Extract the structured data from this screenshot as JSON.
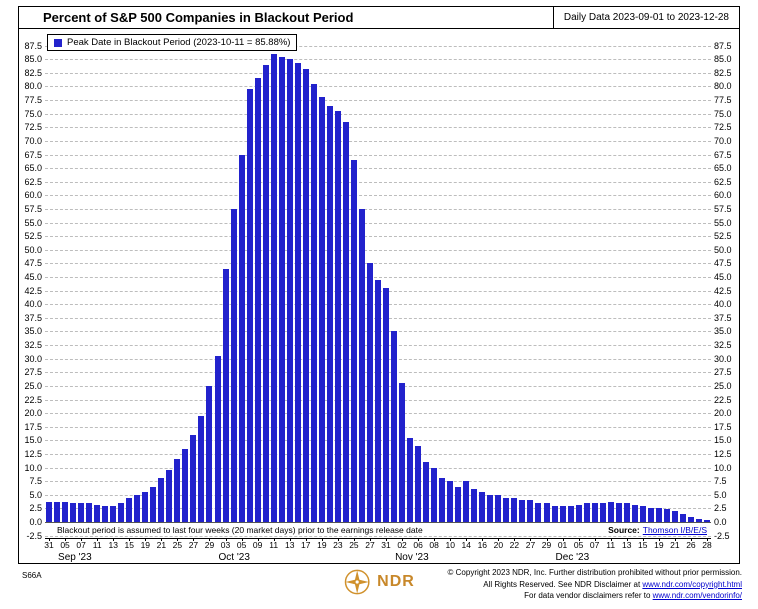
{
  "header": {
    "title": "Percent of S&P 500 Companies in Blackout Period",
    "date_range": "Daily Data 2023-09-01 to 2023-12-28"
  },
  "legend": {
    "label": "Peak Date in Blackout Period (2023-10-11 = 85.88%)",
    "swatch_color": "#2222cc"
  },
  "chart_data": {
    "type": "bar",
    "title": "Percent of S&P 500 Companies in Blackout Period",
    "ylim": [
      -2.5,
      87.5
    ],
    "ytick_step": 2.5,
    "grid": "dashed-horizontal",
    "bar_color": "#2222cc",
    "legend_position": "top-left",
    "peak": {
      "date": "2023-10-11",
      "value": 85.88
    },
    "dates": [
      "2023-08-31",
      "2023-09-01",
      "2023-09-05",
      "2023-09-06",
      "2023-09-07",
      "2023-09-08",
      "2023-09-11",
      "2023-09-12",
      "2023-09-13",
      "2023-09-14",
      "2023-09-15",
      "2023-09-18",
      "2023-09-19",
      "2023-09-20",
      "2023-09-21",
      "2023-09-22",
      "2023-09-25",
      "2023-09-26",
      "2023-09-27",
      "2023-09-28",
      "2023-09-29",
      "2023-10-02",
      "2023-10-03",
      "2023-10-04",
      "2023-10-05",
      "2023-10-06",
      "2023-10-09",
      "2023-10-10",
      "2023-10-11",
      "2023-10-12",
      "2023-10-13",
      "2023-10-16",
      "2023-10-17",
      "2023-10-18",
      "2023-10-19",
      "2023-10-20",
      "2023-10-23",
      "2023-10-24",
      "2023-10-25",
      "2023-10-26",
      "2023-10-27",
      "2023-10-30",
      "2023-10-31",
      "2023-11-01",
      "2023-11-02",
      "2023-11-03",
      "2023-11-06",
      "2023-11-07",
      "2023-11-08",
      "2023-11-09",
      "2023-11-10",
      "2023-11-13",
      "2023-11-14",
      "2023-11-15",
      "2023-11-16",
      "2023-11-17",
      "2023-11-20",
      "2023-11-21",
      "2023-11-22",
      "2023-11-24",
      "2023-11-27",
      "2023-11-28",
      "2023-11-29",
      "2023-11-30",
      "2023-12-01",
      "2023-12-04",
      "2023-12-05",
      "2023-12-06",
      "2023-12-07",
      "2023-12-08",
      "2023-12-11",
      "2023-12-12",
      "2023-12-13",
      "2023-12-14",
      "2023-12-15",
      "2023-12-18",
      "2023-12-19",
      "2023-12-20",
      "2023-12-21",
      "2023-12-22",
      "2023-12-26",
      "2023-12-27",
      "2023-12-28"
    ],
    "values": [
      3.6,
      3.6,
      3.6,
      3.5,
      3.5,
      3.5,
      3.1,
      3.0,
      3.0,
      3.4,
      4.5,
      5.0,
      5.5,
      6.5,
      8.0,
      9.5,
      11.5,
      13.5,
      16.0,
      19.5,
      25.0,
      30.5,
      46.5,
      57.5,
      67.5,
      79.5,
      81.5,
      84.0,
      85.88,
      85.4,
      85.0,
      84.4,
      83.2,
      80.5,
      78.0,
      76.5,
      75.5,
      73.5,
      66.5,
      57.5,
      47.5,
      44.5,
      43.0,
      35.0,
      25.5,
      15.5,
      14.0,
      11.0,
      10.0,
      8.0,
      7.5,
      6.5,
      7.5,
      6.0,
      5.5,
      5.0,
      5.0,
      4.5,
      4.5,
      4.0,
      4.0,
      3.5,
      3.5,
      3.0,
      3.0,
      3.0,
      3.2,
      3.4,
      3.5,
      3.5,
      3.6,
      3.5,
      3.5,
      3.2,
      3.0,
      2.6,
      2.5,
      2.4,
      2.0,
      1.5,
      1.0,
      0.6,
      0.3
    ],
    "months": [
      {
        "month": "09",
        "label": "Sep '23"
      },
      {
        "month": "10",
        "label": "Oct '23"
      },
      {
        "month": "11",
        "label": "Nov '23"
      },
      {
        "month": "12",
        "label": "Dec '23"
      }
    ]
  },
  "plot_notes": {
    "footnote": "Blackout period is assumed to last four weeks (20 market days) prior to the earnings release date",
    "source_label": "Source:",
    "source_link": "Thomson I/B/E/S"
  },
  "footer": {
    "chart_id": "S66A",
    "logo_text": "NDR",
    "logo_color": "#d0912c",
    "copyright_line1": "© Copyright 2023 NDR, Inc. Further distribution prohibited without prior permission.",
    "copyright_line2_prefix": "All Rights Reserved. See NDR Disclaimer at ",
    "copyright_line2_link": "www.ndr.com/copyright.html",
    "copyright_line3_prefix": "For data vendor disclaimers refer to ",
    "copyright_line3_link": "www.ndr.com/vendorinfo/"
  }
}
